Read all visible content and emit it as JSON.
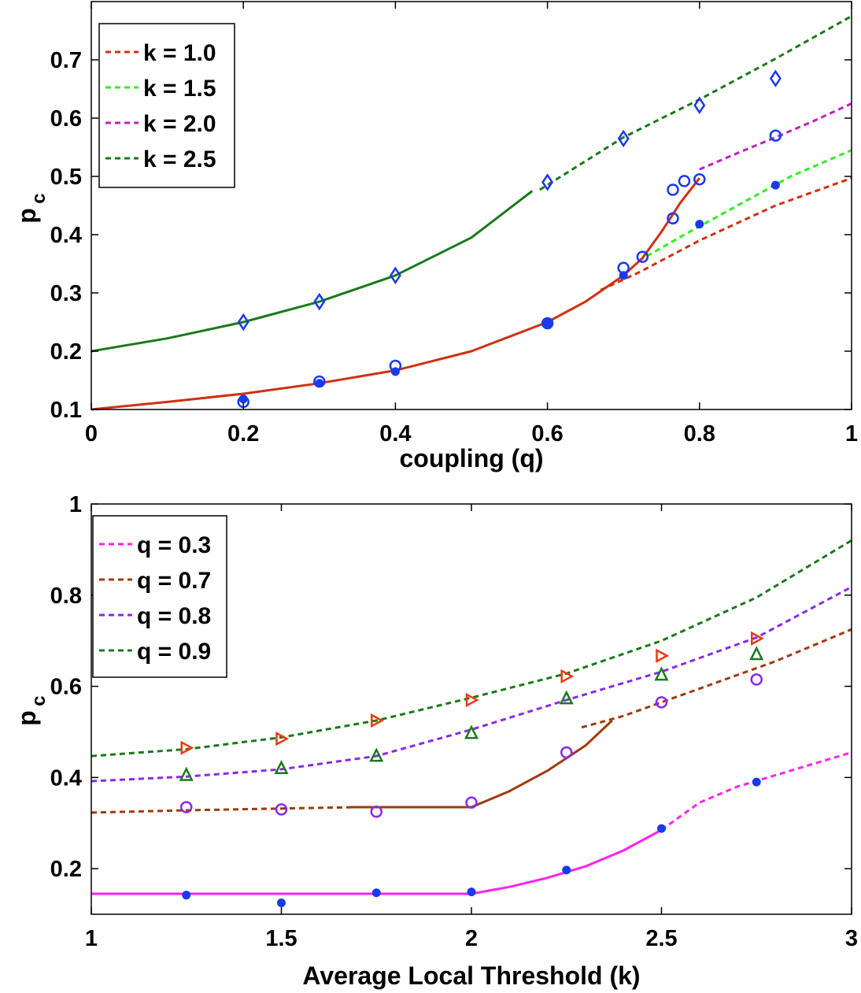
{
  "chart_data": [
    {
      "type": "line",
      "xlabel": "coupling (q)",
      "ylabel_main": "p",
      "ylabel_sub": "c",
      "xlim": [
        0,
        1
      ],
      "ylim": [
        0.1,
        0.8
      ],
      "xticks": [
        0,
        0.2,
        0.4,
        0.6,
        0.8,
        1
      ],
      "xtick_labels": [
        "0",
        "0.2",
        "0.4",
        "0.6",
        "0.8",
        "1"
      ],
      "yticks": [
        0.1,
        0.2,
        0.3,
        0.4,
        0.5,
        0.6,
        0.7
      ],
      "ytick_labels": [
        "0.1",
        "0.2",
        "0.3",
        "0.4",
        "0.5",
        "0.6",
        "0.7"
      ],
      "grid": false,
      "legend_position": "top-left",
      "legend": [
        {
          "label": "k = 1.0",
          "color": "#d03010"
        },
        {
          "label": "k = 1.5",
          "color": "#33ee22"
        },
        {
          "label": "k = 2.0",
          "color": "#c020c0"
        },
        {
          "label": "k = 2.5",
          "color": "#1a7a1a"
        }
      ],
      "series": [
        {
          "color": "#d03010",
          "style": "dashed",
          "x": [
            0.67,
            0.72,
            0.8,
            0.9,
            1.0
          ],
          "y": [
            0.305,
            0.335,
            0.39,
            0.45,
            0.497
          ]
        },
        {
          "color": "#33ee22",
          "style": "dashed",
          "x": [
            0.72,
            0.78,
            0.85,
            0.92,
            1.0
          ],
          "y": [
            0.355,
            0.4,
            0.45,
            0.5,
            0.545
          ]
        },
        {
          "color": "#c020c0",
          "style": "dashed",
          "x": [
            0.8,
            0.85,
            0.9,
            0.95,
            1.0
          ],
          "y": [
            0.512,
            0.54,
            0.567,
            0.595,
            0.625
          ]
        },
        {
          "color": "#1a7a1a",
          "style": "dashed",
          "x": [
            0.59,
            0.7,
            0.8,
            0.9,
            1.0
          ],
          "y": [
            0.477,
            0.567,
            0.632,
            0.702,
            0.775
          ]
        },
        {
          "color": "#1a7a1a",
          "style": "solid",
          "x": [
            0.0,
            0.1,
            0.2,
            0.3,
            0.4,
            0.5,
            0.58
          ],
          "y": [
            0.2,
            0.222,
            0.25,
            0.285,
            0.33,
            0.395,
            0.475
          ]
        },
        {
          "color": "#d03010",
          "style": "solid",
          "x": [
            0.0,
            0.1,
            0.2,
            0.3,
            0.4,
            0.5,
            0.6,
            0.65,
            0.7,
            0.725,
            0.75,
            0.775,
            0.8
          ],
          "y": [
            0.1,
            0.113,
            0.127,
            0.145,
            0.167,
            0.2,
            0.25,
            0.285,
            0.33,
            0.36,
            0.405,
            0.455,
            0.497
          ]
        }
      ],
      "markers": [
        {
          "symbol": "diamond",
          "color": "#1a3aee",
          "points": [
            [
              0.2,
              0.25
            ],
            [
              0.3,
              0.285
            ],
            [
              0.4,
              0.33
            ],
            [
              0.6,
              0.49
            ],
            [
              0.7,
              0.565
            ],
            [
              0.8,
              0.622
            ],
            [
              0.9,
              0.668
            ]
          ]
        },
        {
          "symbol": "circle",
          "color": "#1a3aee",
          "points": [
            [
              0.2,
              0.113
            ],
            [
              0.3,
              0.148
            ],
            [
              0.4,
              0.175
            ],
            [
              0.6,
              0.248
            ],
            [
              0.7,
              0.343
            ],
            [
              0.725,
              0.362
            ],
            [
              0.765,
              0.428
            ],
            [
              0.765,
              0.477
            ],
            [
              0.78,
              0.492
            ],
            [
              0.8,
              0.495
            ],
            [
              0.9,
              0.57
            ]
          ]
        },
        {
          "symbol": "star",
          "color": "#1a3aee",
          "points": [
            [
              0.2,
              0.118
            ],
            [
              0.3,
              0.145
            ],
            [
              0.4,
              0.165
            ],
            [
              0.6,
              0.248
            ],
            [
              0.7,
              0.33
            ],
            [
              0.8,
              0.418
            ],
            [
              0.9,
              0.485
            ]
          ]
        }
      ]
    },
    {
      "type": "line",
      "xlabel": "Average Local Threshold (k)",
      "ylabel_main": "p",
      "ylabel_sub": "c",
      "xlim": [
        1,
        3
      ],
      "ylim": [
        0.1,
        1.0
      ],
      "xticks": [
        1,
        1.5,
        2,
        2.5,
        3
      ],
      "xtick_labels": [
        "1",
        "1.5",
        "2",
        "2.5",
        "3"
      ],
      "yticks": [
        0.2,
        0.4,
        0.6,
        0.8,
        1.0
      ],
      "ytick_labels": [
        "0.2",
        "0.4",
        "0.6",
        "0.8",
        "1"
      ],
      "grid": false,
      "legend_position": "top-left",
      "legend": [
        {
          "label": "q = 0.3",
          "color": "#ff22ee"
        },
        {
          "label": "q = 0.7",
          "color": "#a03a10"
        },
        {
          "label": "q = 0.8",
          "color": "#8a2ae8"
        },
        {
          "label": "q = 0.9",
          "color": "#1a7a1a"
        }
      ],
      "series": [
        {
          "color": "#ff22ee",
          "style": "solid",
          "x": [
            1.0,
            1.5,
            2.0,
            2.1,
            2.2,
            2.3,
            2.4,
            2.5
          ],
          "y": [
            0.145,
            0.145,
            0.145,
            0.16,
            0.18,
            0.205,
            0.24,
            0.285
          ]
        },
        {
          "color": "#ff22ee",
          "style": "dashed",
          "x": [
            2.5,
            2.6,
            2.7,
            2.8,
            2.9,
            3.0
          ],
          "y": [
            0.285,
            0.345,
            0.38,
            0.405,
            0.43,
            0.455
          ]
        },
        {
          "color": "#a03a10",
          "style": "dashed",
          "x": [
            1.0,
            1.25,
            1.5,
            1.7
          ],
          "y": [
            0.323,
            0.328,
            0.332,
            0.335
          ]
        },
        {
          "color": "#a03a10",
          "style": "solid",
          "x": [
            1.68,
            1.8,
            1.9,
            2.0,
            2.1,
            2.2,
            2.3,
            2.37
          ],
          "y": [
            0.335,
            0.335,
            0.335,
            0.335,
            0.37,
            0.415,
            0.47,
            0.525
          ]
        },
        {
          "color": "#a03a10",
          "style": "dashed",
          "x": [
            2.29,
            2.4,
            2.5,
            2.6,
            2.7,
            2.8,
            2.9,
            3.0
          ],
          "y": [
            0.51,
            0.535,
            0.565,
            0.595,
            0.625,
            0.655,
            0.69,
            0.725
          ]
        },
        {
          "color": "#8a2ae8",
          "style": "dashed",
          "x": [
            1.0,
            1.25,
            1.5,
            1.75,
            2.0,
            2.25,
            2.5,
            2.75,
            3.0
          ],
          "y": [
            0.392,
            0.402,
            0.418,
            0.447,
            0.505,
            0.57,
            0.632,
            0.707,
            0.818
          ]
        },
        {
          "color": "#1a7a1a",
          "style": "dashed",
          "x": [
            1.0,
            1.25,
            1.5,
            1.75,
            2.0,
            2.25,
            2.5,
            2.75,
            3.0
          ],
          "y": [
            0.447,
            0.462,
            0.488,
            0.525,
            0.575,
            0.628,
            0.7,
            0.795,
            0.92
          ]
        }
      ],
      "markers": [
        {
          "symbol": "triangle-right",
          "color": "#ee3a10",
          "points": [
            [
              1.25,
              0.465
            ],
            [
              1.5,
              0.485
            ],
            [
              1.75,
              0.525
            ],
            [
              2.0,
              0.57
            ],
            [
              2.25,
              0.622
            ],
            [
              2.5,
              0.667
            ],
            [
              2.75,
              0.705
            ]
          ]
        },
        {
          "symbol": "triangle-up",
          "color": "#1a7a1a",
          "points": [
            [
              1.25,
              0.405
            ],
            [
              1.5,
              0.42
            ],
            [
              1.75,
              0.447
            ],
            [
              2.0,
              0.497
            ],
            [
              2.25,
              0.573
            ],
            [
              2.5,
              0.625
            ],
            [
              2.75,
              0.67
            ]
          ]
        },
        {
          "symbol": "circle",
          "color": "#8a2ae8",
          "points": [
            [
              1.25,
              0.335
            ],
            [
              1.5,
              0.33
            ],
            [
              1.75,
              0.325
            ],
            [
              2.0,
              0.345
            ],
            [
              2.25,
              0.455
            ],
            [
              2.5,
              0.565
            ],
            [
              2.75,
              0.615
            ]
          ]
        },
        {
          "symbol": "star",
          "color": "#1a3aee",
          "points": [
            [
              1.25,
              0.142
            ],
            [
              1.5,
              0.125
            ],
            [
              1.75,
              0.147
            ],
            [
              2.0,
              0.149
            ],
            [
              2.25,
              0.197
            ],
            [
              2.5,
              0.288
            ],
            [
              2.75,
              0.39
            ]
          ]
        }
      ]
    }
  ]
}
